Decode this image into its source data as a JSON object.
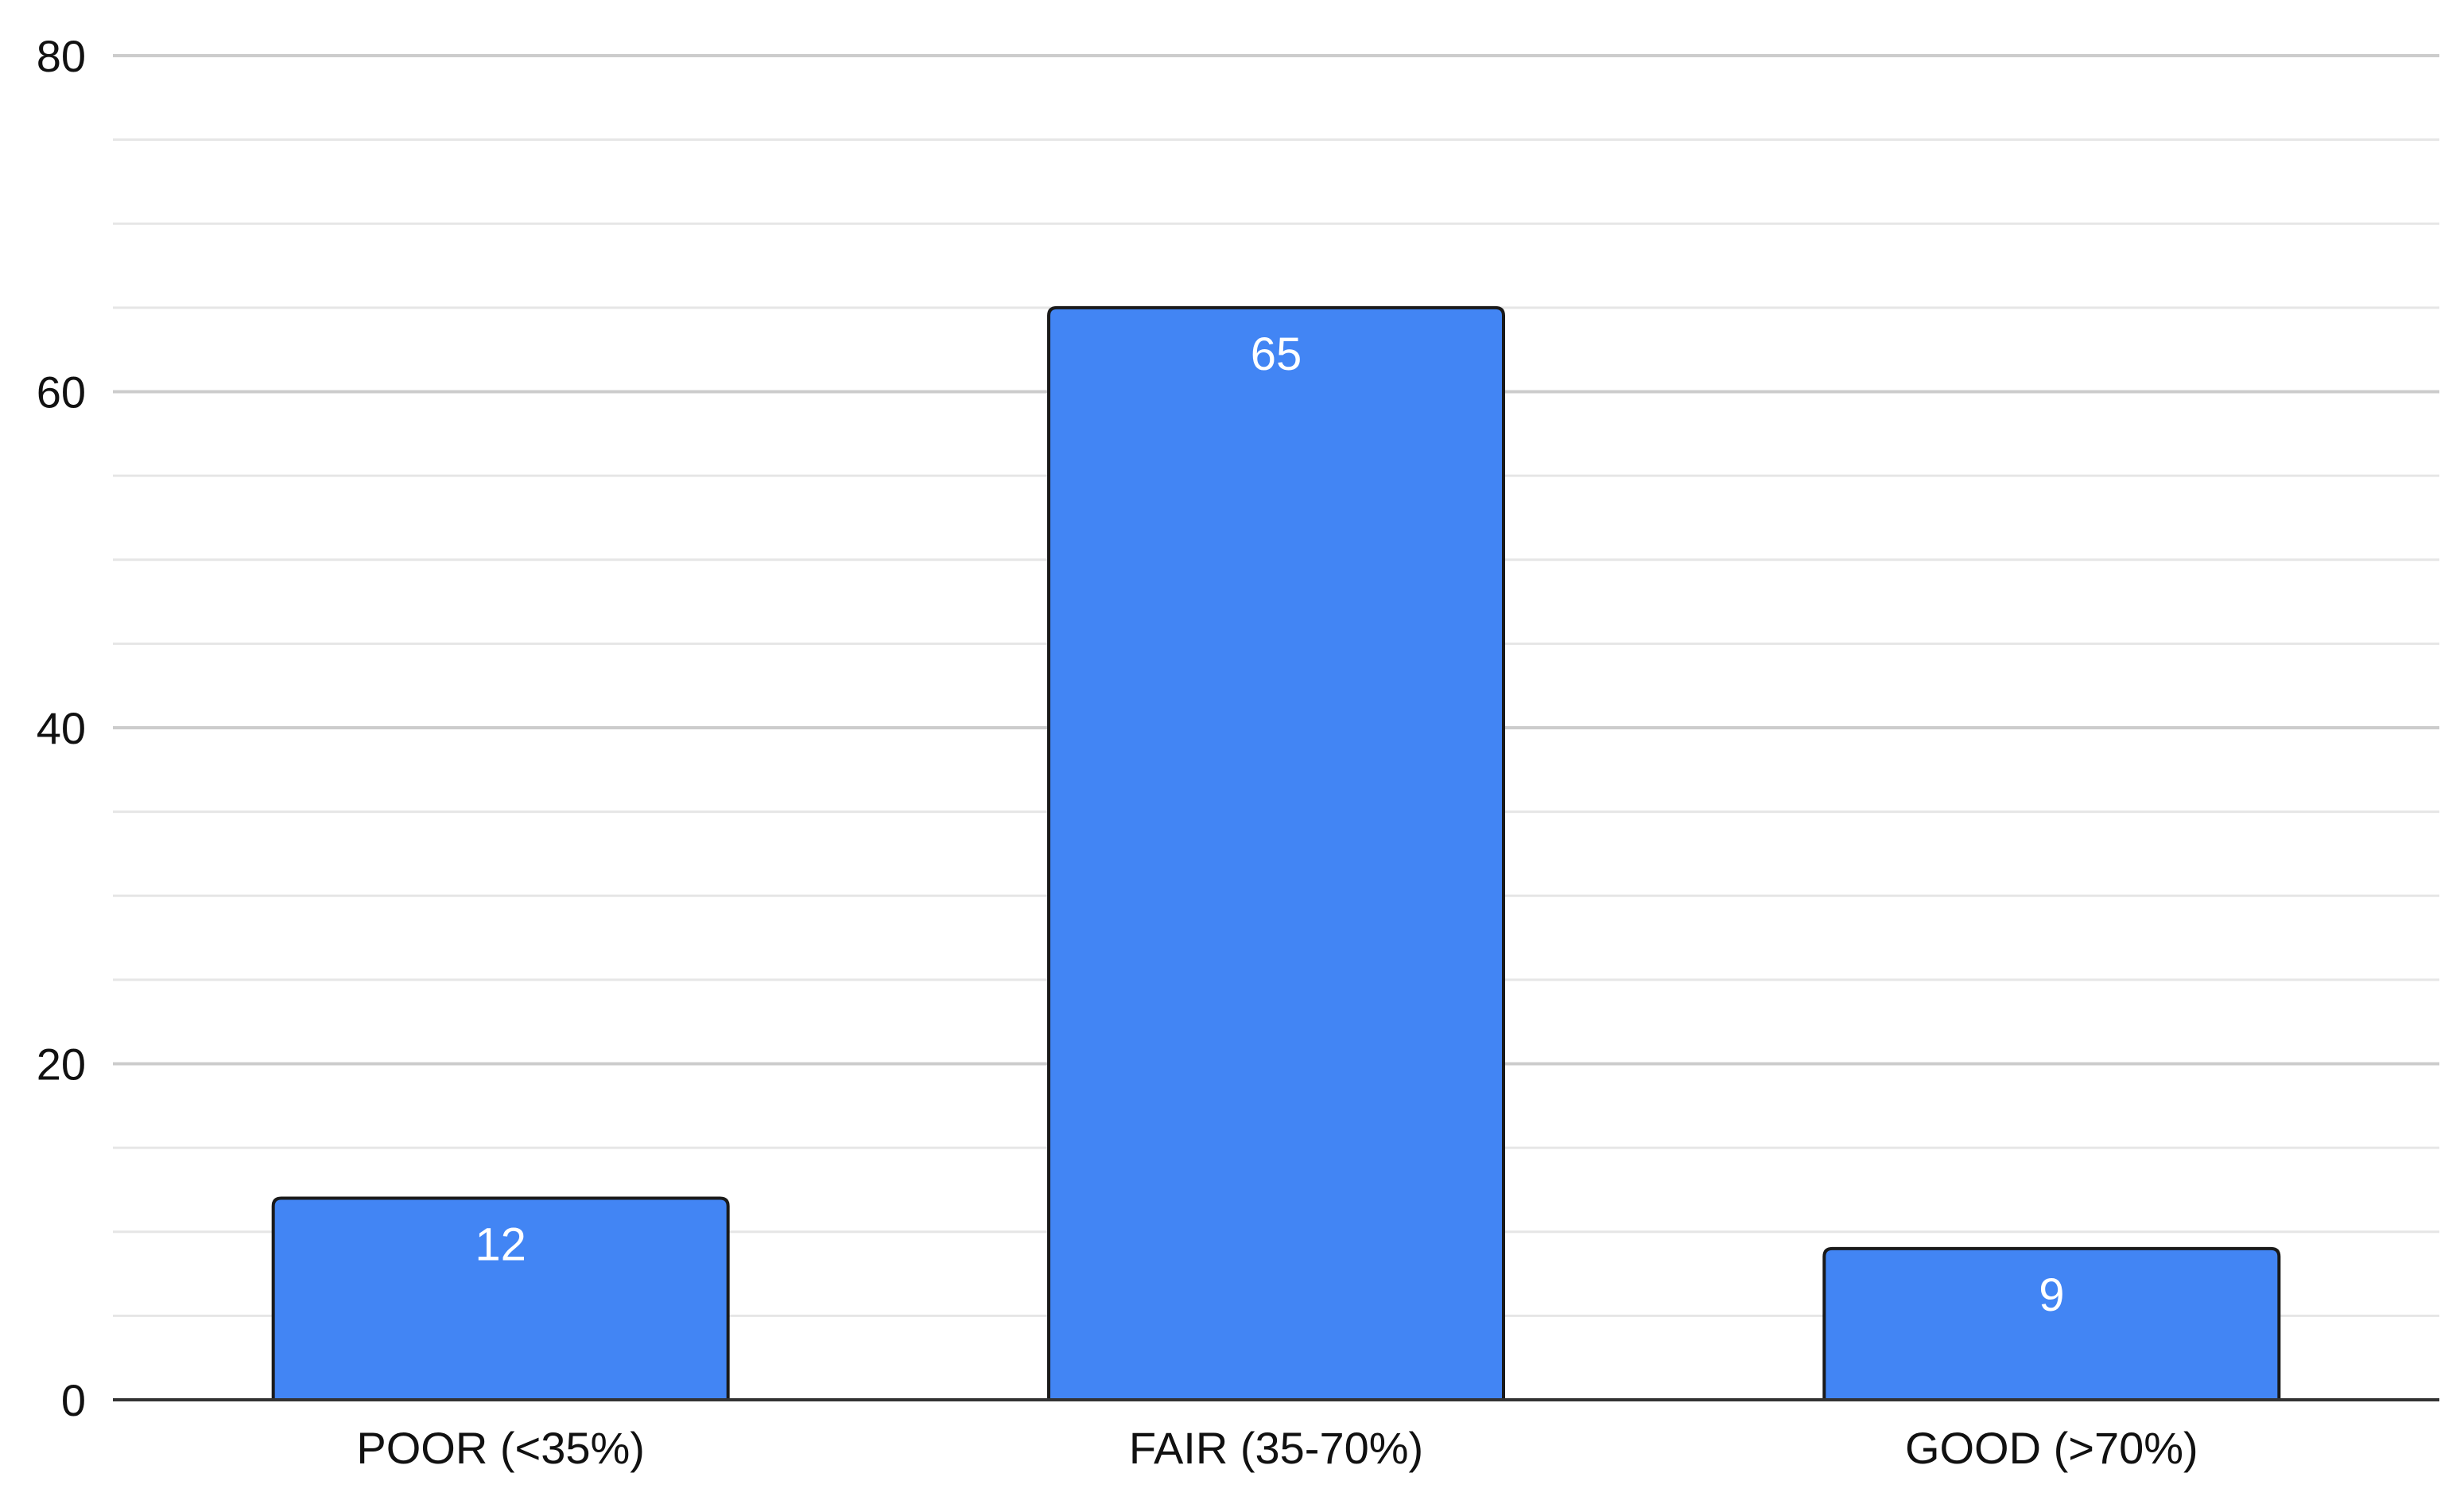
{
  "chart_data": {
    "type": "bar",
    "categories": [
      "POOR (<35%)",
      "FAIR (35-70%)",
      "GOOD (>70%)"
    ],
    "values": [
      12,
      65,
      9
    ],
    "data_labels": [
      "12",
      "65",
      "9"
    ],
    "ylim": [
      0,
      80
    ],
    "yticks": [
      0,
      20,
      40,
      60,
      80
    ],
    "minor_gridlines_per_major": 3,
    "grid": true,
    "legend": "none",
    "title": "",
    "xlabel": "",
    "ylabel": "",
    "colors": {
      "bar": "#4285f4",
      "bar_stroke": "#1a1a1a",
      "bar_label": "#ffffff",
      "major_grid": "#cccccc",
      "minor_grid": "#e6e6e6",
      "axis": "#333333",
      "text": "#111111"
    }
  }
}
